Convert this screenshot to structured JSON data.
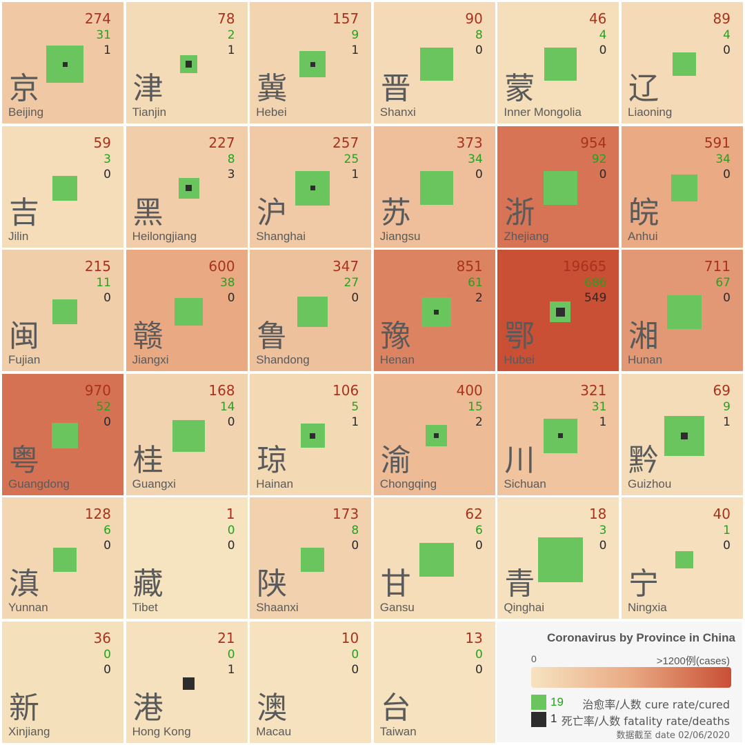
{
  "chart_data": {
    "type": "table",
    "title": "Coronavirus by Province in China",
    "color_scale": {
      "min_label": "0",
      "max_label": ">1200例(cases)",
      "max_value": 1200,
      "low_color": "#f6e3c0",
      "mid_color": "#e9a983",
      "high_color": "#c94f35"
    },
    "legend": {
      "cure_example": "19",
      "cure_label": "治愈率/人数 cure rate/cured",
      "death_example": "1",
      "death_label": "死亡率/人数 fatality rate/deaths",
      "cure_color": "#6ac55f",
      "death_color": "#2d2d2d"
    },
    "date_label": "数据截至 date 02/06/2020",
    "provinces": [
      {
        "zh": "京",
        "en": "Beijing",
        "confirmed": 274,
        "cured": 31,
        "deaths": 1
      },
      {
        "zh": "津",
        "en": "Tianjin",
        "confirmed": 78,
        "cured": 2,
        "deaths": 1
      },
      {
        "zh": "冀",
        "en": "Hebei",
        "confirmed": 157,
        "cured": 9,
        "deaths": 1
      },
      {
        "zh": "晋",
        "en": "Shanxi",
        "confirmed": 90,
        "cured": 8,
        "deaths": 0
      },
      {
        "zh": "蒙",
        "en": "Inner Mongolia",
        "confirmed": 46,
        "cured": 4,
        "deaths": 0
      },
      {
        "zh": "辽",
        "en": "Liaoning",
        "confirmed": 89,
        "cured": 4,
        "deaths": 0
      },
      {
        "zh": "吉",
        "en": "Jilin",
        "confirmed": 59,
        "cured": 3,
        "deaths": 0
      },
      {
        "zh": "黑",
        "en": "Heilongjiang",
        "confirmed": 227,
        "cured": 8,
        "deaths": 3
      },
      {
        "zh": "沪",
        "en": "Shanghai",
        "confirmed": 257,
        "cured": 25,
        "deaths": 1
      },
      {
        "zh": "苏",
        "en": "Jiangsu",
        "confirmed": 373,
        "cured": 34,
        "deaths": 0
      },
      {
        "zh": "浙",
        "en": "Zhejiang",
        "confirmed": 954,
        "cured": 92,
        "deaths": 0
      },
      {
        "zh": "皖",
        "en": "Anhui",
        "confirmed": 591,
        "cured": 34,
        "deaths": 0
      },
      {
        "zh": "闽",
        "en": "Fujian",
        "confirmed": 215,
        "cured": 11,
        "deaths": 0
      },
      {
        "zh": "赣",
        "en": "Jiangxi",
        "confirmed": 600,
        "cured": 38,
        "deaths": 0
      },
      {
        "zh": "鲁",
        "en": "Shandong",
        "confirmed": 347,
        "cured": 27,
        "deaths": 0
      },
      {
        "zh": "豫",
        "en": "Henan",
        "confirmed": 851,
        "cured": 61,
        "deaths": 2
      },
      {
        "zh": "鄂",
        "en": "Hubei",
        "confirmed": 19665,
        "cured": 686,
        "deaths": 549
      },
      {
        "zh": "湘",
        "en": "Hunan",
        "confirmed": 711,
        "cured": 67,
        "deaths": 0
      },
      {
        "zh": "粤",
        "en": "Guangdong",
        "confirmed": 970,
        "cured": 52,
        "deaths": 0
      },
      {
        "zh": "桂",
        "en": "Guangxi",
        "confirmed": 168,
        "cured": 14,
        "deaths": 0
      },
      {
        "zh": "琼",
        "en": "Hainan",
        "confirmed": 106,
        "cured": 5,
        "deaths": 1
      },
      {
        "zh": "渝",
        "en": "Chongqing",
        "confirmed": 400,
        "cured": 15,
        "deaths": 2
      },
      {
        "zh": "川",
        "en": "Sichuan",
        "confirmed": 321,
        "cured": 31,
        "deaths": 1
      },
      {
        "zh": "黔",
        "en": "Guizhou",
        "confirmed": 69,
        "cured": 9,
        "deaths": 1
      },
      {
        "zh": "滇",
        "en": "Yunnan",
        "confirmed": 128,
        "cured": 6,
        "deaths": 0
      },
      {
        "zh": "藏",
        "en": "Tibet",
        "confirmed": 1,
        "cured": 0,
        "deaths": 0
      },
      {
        "zh": "陕",
        "en": "Shaanxi",
        "confirmed": 173,
        "cured": 8,
        "deaths": 0
      },
      {
        "zh": "甘",
        "en": "Gansu",
        "confirmed": 62,
        "cured": 6,
        "deaths": 0
      },
      {
        "zh": "青",
        "en": "Qinghai",
        "confirmed": 18,
        "cured": 3,
        "deaths": 0
      },
      {
        "zh": "宁",
        "en": "Ningxia",
        "confirmed": 40,
        "cured": 1,
        "deaths": 0
      },
      {
        "zh": "新",
        "en": "Xinjiang",
        "confirmed": 36,
        "cured": 0,
        "deaths": 0
      },
      {
        "zh": "港",
        "en": "Hong Kong",
        "confirmed": 21,
        "cured": 0,
        "deaths": 1
      },
      {
        "zh": "澳",
        "en": "Macau",
        "confirmed": 10,
        "cured": 0,
        "deaths": 0
      },
      {
        "zh": "台",
        "en": "Taiwan",
        "confirmed": 13,
        "cured": 0,
        "deaths": 0
      }
    ]
  }
}
